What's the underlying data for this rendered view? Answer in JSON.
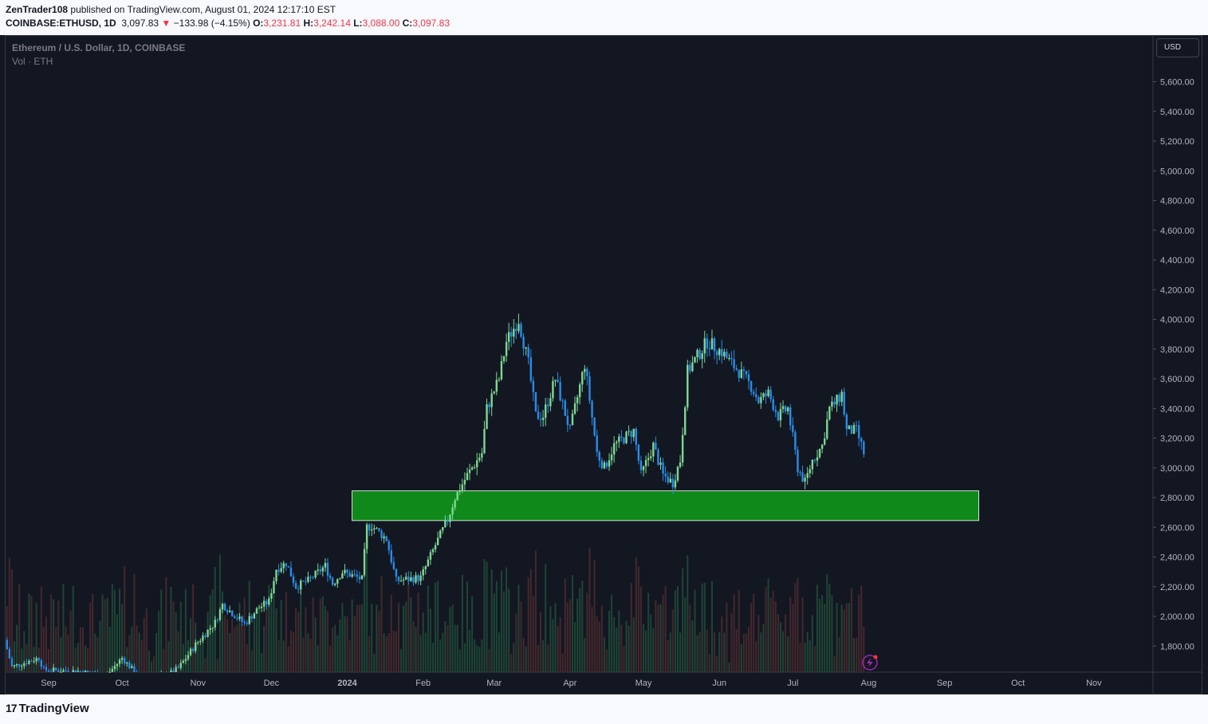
{
  "header": {
    "author": "ZenTrader108",
    "published": "published on TradingView.com, August 01, 2024 12:17:10 EST",
    "symbol": "COINBASE:ETHUSD, 1D",
    "last": "3,097.83",
    "arrow": "▼",
    "change": "−133.98 (−4.15%)",
    "o_label": "O:",
    "o": "3,231.81",
    "h_label": "H:",
    "h": "3,242.14",
    "l_label": "L:",
    "l": "3,088.00",
    "c_label": "C:",
    "c": "3,097.83"
  },
  "legend": {
    "title": "Ethereum / U.S. Dollar, 1D, COINBASE",
    "volume": "Vol · ETH"
  },
  "currency_button": "USD",
  "footer": {
    "logo_mark": "17",
    "logo_text": "TradingView"
  },
  "icons": [
    "flash-icon"
  ],
  "colors": {
    "up": "#7ed892",
    "down": "#2a8ce8",
    "zone": "#0f8a1a",
    "background": "#131722"
  },
  "chart_data": {
    "type": "candlestick",
    "title": "Ethereum / U.S. Dollar, 1D, COINBASE",
    "ylim": [
      1650,
      5750
    ],
    "y_ticks": [
      "5,600.00",
      "5,400.00",
      "5,200.00",
      "5,000.00",
      "4,800.00",
      "4,600.00",
      "4,400.00",
      "4,200.00",
      "4,000.00",
      "3,800.00",
      "3,600.00",
      "3,400.00",
      "3,200.00",
      "3,000.00",
      "2,800.00",
      "2,600.00",
      "2,400.00",
      "2,200.00",
      "2,000.00",
      "1,800.00"
    ],
    "x_ticks": [
      "Sep",
      "Oct",
      "Nov",
      "Dec",
      "2024",
      "Feb",
      "Mar",
      "Apr",
      "May",
      "Jun",
      "Jul",
      "Aug",
      "Sep",
      "Oct",
      "Nov"
    ],
    "support_zone": {
      "low": 2645,
      "high": 2845,
      "from": "2024-01-01",
      "to": "2024-09-15"
    },
    "price_path": [
      [
        "2023-08-15",
        1840
      ],
      [
        "2023-08-18",
        1660
      ],
      [
        "2023-08-29",
        1720
      ],
      [
        "2023-08-31",
        1640
      ],
      [
        "2023-09-15",
        1630
      ],
      [
        "2023-09-25",
        1590
      ],
      [
        "2023-10-02",
        1720
      ],
      [
        "2023-10-10",
        1570
      ],
      [
        "2023-10-20",
        1600
      ],
      [
        "2023-10-25",
        1650
      ],
      [
        "2023-11-01",
        1810
      ],
      [
        "2023-11-09",
        1960
      ],
      [
        "2023-11-12",
        2080
      ],
      [
        "2023-11-21",
        1950
      ],
      [
        "2023-11-27",
        2060
      ],
      [
        "2023-12-01",
        2100
      ],
      [
        "2023-12-04",
        2320
      ],
      [
        "2023-12-08",
        2360
      ],
      [
        "2023-12-12",
        2200
      ],
      [
        "2023-12-17",
        2240
      ],
      [
        "2023-12-24",
        2340
      ],
      [
        "2023-12-27",
        2220
      ],
      [
        "2023-12-31",
        2300
      ],
      [
        "2024-01-08",
        2250
      ],
      [
        "2024-01-10",
        2600
      ],
      [
        "2024-01-12",
        2610
      ],
      [
        "2024-01-18",
        2520
      ],
      [
        "2024-01-22",
        2240
      ],
      [
        "2024-01-26",
        2250
      ],
      [
        "2024-02-01",
        2260
      ],
      [
        "2024-02-07",
        2480
      ],
      [
        "2024-02-12",
        2650
      ],
      [
        "2024-02-15",
        2800
      ],
      [
        "2024-02-20",
        2950
      ],
      [
        "2024-02-26",
        3100
      ],
      [
        "2024-02-28",
        3400
      ],
      [
        "2024-03-04",
        3600
      ],
      [
        "2024-03-07",
        3850
      ],
      [
        "2024-03-12",
        4000
      ],
      [
        "2024-03-16",
        3700
      ],
      [
        "2024-03-19",
        3350
      ],
      [
        "2024-03-22",
        3350
      ],
      [
        "2024-03-27",
        3600
      ],
      [
        "2024-04-02",
        3250
      ],
      [
        "2024-04-08",
        3700
      ],
      [
        "2024-04-13",
        3100
      ],
      [
        "2024-04-16",
        3000
      ],
      [
        "2024-04-20",
        3150
      ],
      [
        "2024-04-24",
        3200
      ],
      [
        "2024-04-28",
        3250
      ],
      [
        "2024-05-01",
        2950
      ],
      [
        "2024-05-06",
        3150
      ],
      [
        "2024-05-10",
        2950
      ],
      [
        "2024-05-14",
        2900
      ],
      [
        "2024-05-17",
        3050
      ],
      [
        "2024-05-20",
        3650
      ],
      [
        "2024-05-24",
        3750
      ],
      [
        "2024-05-28",
        3850
      ],
      [
        "2024-06-03",
        3780
      ],
      [
        "2024-06-07",
        3700
      ],
      [
        "2024-06-10",
        3650
      ],
      [
        "2024-06-15",
        3550
      ],
      [
        "2024-06-18",
        3450
      ],
      [
        "2024-06-22",
        3500
      ],
      [
        "2024-06-26",
        3350
      ],
      [
        "2024-06-30",
        3400
      ],
      [
        "2024-07-04",
        3000
      ],
      [
        "2024-07-07",
        2900
      ],
      [
        "2024-07-10",
        3050
      ],
      [
        "2024-07-14",
        3150
      ],
      [
        "2024-07-17",
        3400
      ],
      [
        "2024-07-20",
        3450
      ],
      [
        "2024-07-22",
        3500
      ],
      [
        "2024-07-24",
        3250
      ],
      [
        "2024-07-28",
        3250
      ],
      [
        "2024-07-31",
        3100
      ]
    ]
  }
}
